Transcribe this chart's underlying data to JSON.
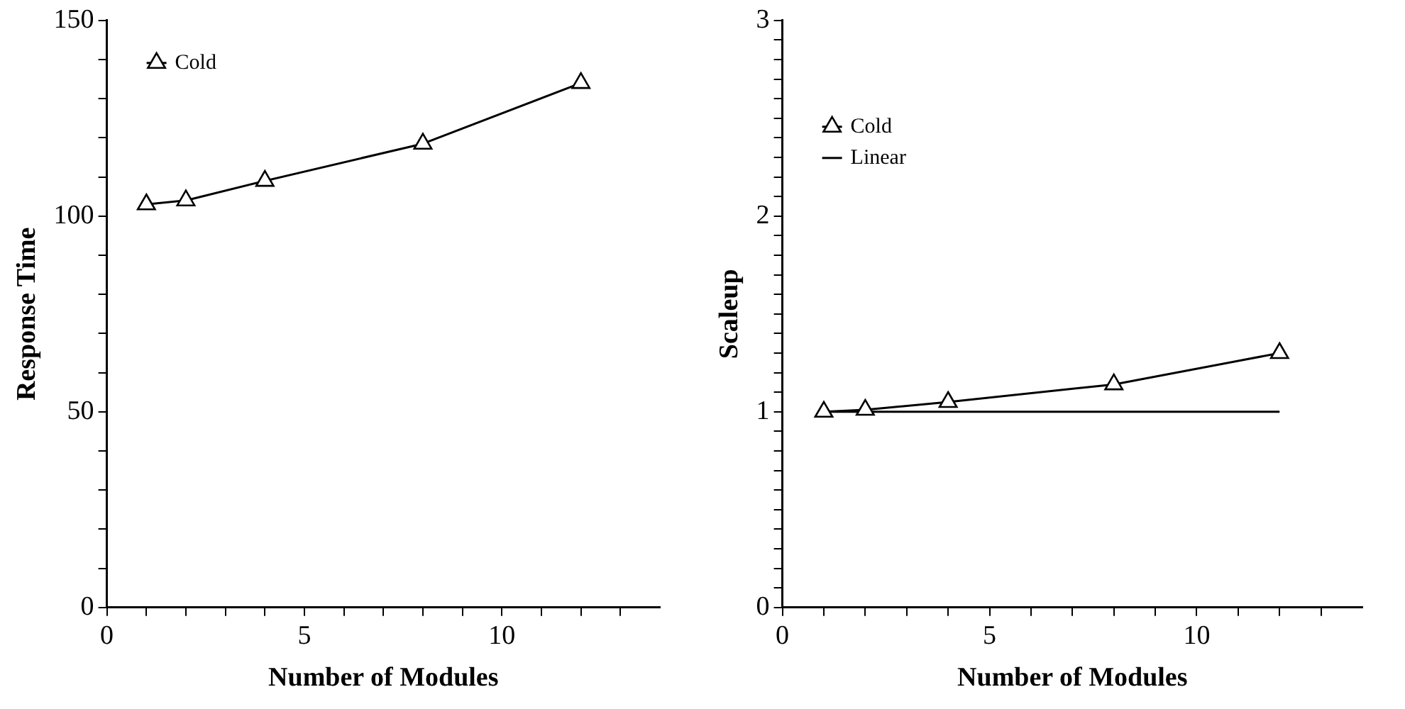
{
  "chart_data": [
    {
      "type": "line",
      "xlabel": "Number of Modules",
      "ylabel": "Response Time",
      "x": [
        1,
        2,
        4,
        8,
        12
      ],
      "series": [
        {
          "name": "Cold",
          "color": "#000000",
          "values": [
            103,
            104,
            109,
            118.5,
            134
          ],
          "marker": "triangle"
        }
      ],
      "xlim": [
        0,
        14
      ],
      "xticks": [
        0,
        {
          "value": 1,
          "label": null
        },
        {
          "value": 2,
          "label": null
        },
        {
          "value": 3,
          "label": null
        },
        {
          "value": 4,
          "label": null
        },
        5,
        {
          "value": 6,
          "label": null
        },
        {
          "value": 7,
          "label": null
        },
        {
          "value": 8,
          "label": null
        },
        {
          "value": 9,
          "label": null
        },
        10,
        {
          "value": 11,
          "label": null
        },
        {
          "value": 12,
          "label": null
        },
        {
          "value": 13,
          "label": null
        }
      ],
      "ylim": [
        0,
        150
      ],
      "yticks": [
        0,
        {
          "value": 10,
          "label": null
        },
        {
          "value": 20,
          "label": null
        },
        {
          "value": 30,
          "label": null
        },
        {
          "value": 40,
          "label": null
        },
        50,
        {
          "value": 60,
          "label": null
        },
        {
          "value": 70,
          "label": null
        },
        {
          "value": 80,
          "label": null
        },
        {
          "value": 90,
          "label": null
        },
        100,
        {
          "value": 110,
          "label": null
        },
        {
          "value": 120,
          "label": null
        },
        {
          "value": 130,
          "label": null
        },
        {
          "value": 140,
          "label": null
        },
        150
      ],
      "grid": false,
      "legend": "top left"
    },
    {
      "type": "line",
      "xlabel": "Number of Modules",
      "ylabel": "Scaleup",
      "x": [
        1,
        2,
        4,
        8,
        12
      ],
      "series": [
        {
          "name": "Cold",
          "color": "#000000",
          "values": [
            1.0,
            1.01,
            1.05,
            1.14,
            1.3
          ],
          "marker": "triangle"
        },
        {
          "name": "Linear",
          "color": "#000000",
          "values": [
            1,
            1,
            1,
            1,
            1
          ],
          "marker": "none"
        }
      ],
      "xlim": [
        0,
        14
      ],
      "xticks": [
        0,
        {
          "value": 1,
          "label": null
        },
        {
          "value": 2,
          "label": null
        },
        {
          "value": 3,
          "label": null
        },
        {
          "value": 4,
          "label": null
        },
        5,
        {
          "value": 6,
          "label": null
        },
        {
          "value": 7,
          "label": null
        },
        {
          "value": 8,
          "label": null
        },
        {
          "value": 9,
          "label": null
        },
        10,
        {
          "value": 11,
          "label": null
        },
        {
          "value": 12,
          "label": null
        },
        {
          "value": 13,
          "label": null
        }
      ],
      "ylim": [
        0,
        3
      ],
      "yticks": [
        0,
        {
          "value": 0.1,
          "label": null
        },
        {
          "value": 0.2,
          "label": null
        },
        {
          "value": 0.3,
          "label": null
        },
        {
          "value": 0.4,
          "label": null
        },
        {
          "value": 0.5,
          "label": null
        },
        {
          "value": 0.6,
          "label": null
        },
        {
          "value": 0.7,
          "label": null
        },
        {
          "value": 0.8,
          "label": null
        },
        {
          "value": 0.9,
          "label": null
        },
        1,
        {
          "value": 1.1,
          "label": null
        },
        {
          "value": 1.2,
          "label": null
        },
        {
          "value": 1.3,
          "label": null
        },
        {
          "value": 1.4,
          "label": null
        },
        {
          "value": 1.5,
          "label": null
        },
        {
          "value": 1.6,
          "label": null
        },
        {
          "value": 1.7,
          "label": null
        },
        {
          "value": 1.8,
          "label": null
        },
        {
          "value": 1.9,
          "label": null
        },
        2,
        {
          "value": 2.1,
          "label": null
        },
        {
          "value": 2.2,
          "label": null
        },
        {
          "value": 2.3,
          "label": null
        },
        {
          "value": 2.4,
          "label": null
        },
        {
          "value": 2.5,
          "label": null
        },
        {
          "value": 2.6,
          "label": null
        },
        {
          "value": 2.7,
          "label": null
        },
        {
          "value": 2.8,
          "label": null
        },
        {
          "value": 2.9,
          "label": null
        },
        3
      ],
      "grid": false,
      "legend": "top left"
    }
  ]
}
